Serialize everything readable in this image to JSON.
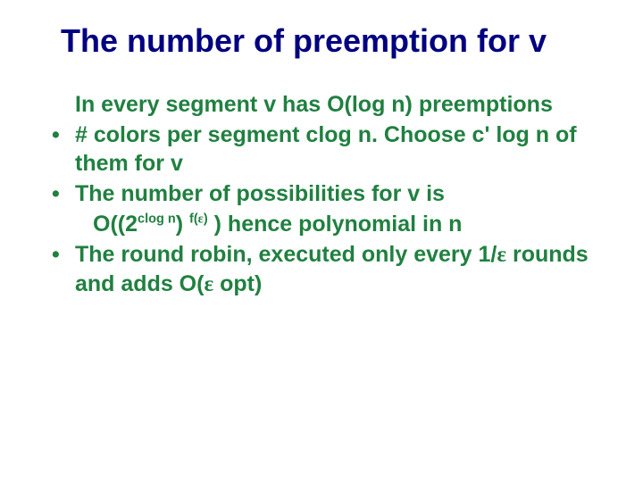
{
  "title": {
    "text": "The number of preemption for v",
    "color": "#000080",
    "fontsize": 36
  },
  "body": {
    "color": "#208040",
    "fontsize": 25,
    "items": [
      {
        "bullet": false,
        "text": "In every segment v has O(log n) preemptions"
      },
      {
        "bullet": true,
        "text": "# colors per segment  clog n. Choose c' log n of them for v"
      },
      {
        "bullet": true,
        "text": "The number of possibilities for v is"
      },
      {
        "bullet": false,
        "indent": true,
        "html": true,
        "text": "O((2<sup>clog n</sup>) <sup>f(<span class=\"eps\">ε</span>)</sup> ) hence polynomial in n"
      },
      {
        "bullet": true,
        "html": true,
        "text": "The round robin, executed only every 1/<span class=\"eps\">ε</span> rounds and adds O(<span class=\"eps\">ε</span> opt)"
      }
    ]
  }
}
